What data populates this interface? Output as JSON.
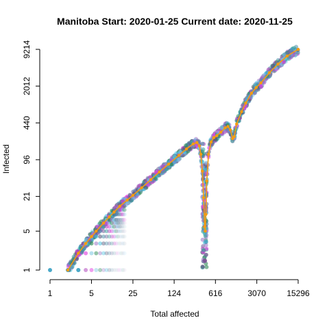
{
  "chart_data": {
    "type": "scatter",
    "title": "Manitoba Start:  2020-01-25   Current date:  2020-11-25",
    "xlabel": "Total affected",
    "ylabel": "Infected",
    "log_x": true,
    "log_y": true,
    "xlim": [
      1,
      15296
    ],
    "ylim": [
      1,
      9214
    ],
    "x_ticks": [
      {
        "value": 1,
        "label": "1"
      },
      {
        "value": 5,
        "label": "5"
      },
      {
        "value": 25,
        "label": "25"
      },
      {
        "value": 124,
        "label": "124"
      },
      {
        "value": 616,
        "label": "616"
      },
      {
        "value": 3070,
        "label": "3070"
      },
      {
        "value": 15296,
        "label": "15296"
      }
    ],
    "y_ticks": [
      {
        "value": 1,
        "label": "1"
      },
      {
        "value": 5,
        "label": "5"
      },
      {
        "value": 21,
        "label": "21"
      },
      {
        "value": 96,
        "label": "96"
      },
      {
        "value": 440,
        "label": "440"
      },
      {
        "value": 2012,
        "label": "2012"
      },
      {
        "value": 9214,
        "label": "9214"
      }
    ],
    "grid": false,
    "series": [
      {
        "color": "#f39c12",
        "points": [
          [
            2,
            1
          ],
          [
            3,
            2
          ],
          [
            4,
            3
          ],
          [
            5,
            4
          ],
          [
            6,
            5
          ],
          [
            8,
            7
          ],
          [
            10,
            9
          ],
          [
            12,
            11
          ],
          [
            15,
            14
          ],
          [
            20,
            18
          ],
          [
            25,
            22
          ],
          [
            35,
            30
          ],
          [
            50,
            42
          ],
          [
            70,
            58
          ],
          [
            100,
            80
          ],
          [
            150,
            115
          ],
          [
            200,
            150
          ],
          [
            260,
            185
          ],
          [
            300,
            195
          ],
          [
            330,
            170
          ],
          [
            350,
            120
          ],
          [
            370,
            60
          ],
          [
            390,
            20
          ],
          [
            405,
            6
          ],
          [
            415,
            5
          ],
          [
            425,
            10
          ],
          [
            440,
            40
          ],
          [
            470,
            120
          ],
          [
            520,
            200
          ],
          [
            580,
            240
          ],
          [
            650,
            260
          ],
          [
            760,
            300
          ],
          [
            900,
            360
          ],
          [
            1000,
            380
          ],
          [
            1100,
            330
          ],
          [
            1200,
            230
          ],
          [
            1280,
            250
          ],
          [
            1400,
            420
          ],
          [
            1700,
            700
          ],
          [
            2000,
            1000
          ],
          [
            2500,
            1500
          ],
          [
            3000,
            1900
          ],
          [
            3600,
            2300
          ],
          [
            5000,
            3500
          ],
          [
            7000,
            5000
          ],
          [
            10000,
            7000
          ],
          [
            15296,
            9214
          ]
        ]
      }
    ]
  }
}
